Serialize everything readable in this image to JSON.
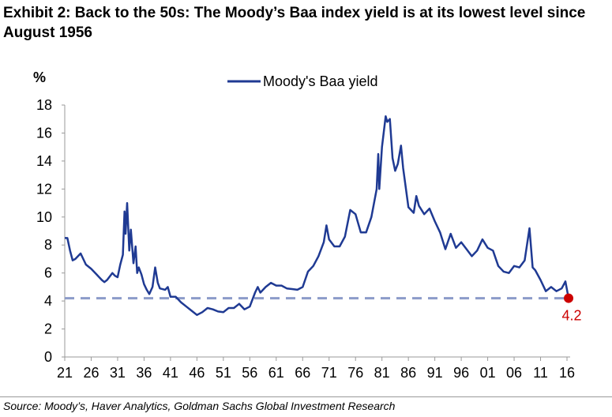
{
  "title": "Exhibit 2: Back to the 50s: The Moody’s Baa index yield is at its lowest level since August 1956",
  "source": "Source: Moody’s, Haver Analytics, Goldman Sachs Global Investment Research",
  "chart_data": {
    "type": "line",
    "ylabel": "%",
    "xlabel": "",
    "ylim": [
      0,
      18
    ],
    "xlim": [
      1921,
      2016.5
    ],
    "yticks": [
      0,
      2,
      4,
      6,
      8,
      10,
      12,
      14,
      16,
      18
    ],
    "xticks": [
      1921,
      1926,
      1931,
      1936,
      1941,
      1946,
      1951,
      1956,
      1961,
      1966,
      1971,
      1976,
      1981,
      1986,
      1991,
      1996,
      2001,
      2006,
      2011,
      2016
    ],
    "xtick_labels": [
      "21",
      "26",
      "31",
      "36",
      "41",
      "46",
      "51",
      "56",
      "61",
      "66",
      "71",
      "76",
      "81",
      "86",
      "91",
      "96",
      "01",
      "06",
      "11",
      "16"
    ],
    "legend": {
      "position": "top-center",
      "entries": [
        "Moody's Baa yield"
      ]
    },
    "colors": {
      "series": "#1f3a93",
      "reference": "#8c9bc9",
      "marker": "#cc0000"
    },
    "reference_line": {
      "value": 4.2,
      "style": "dashed"
    },
    "annotation": {
      "x": 2016.3,
      "y": 4.2,
      "label": "4.2"
    },
    "series": [
      {
        "name": "Moody's Baa yield",
        "x": [
          1921,
          1921.5,
          1922,
          1922.5,
          1923,
          1924,
          1925,
          1926,
          1927,
          1928,
          1928.5,
          1929,
          1930,
          1930.5,
          1931,
          1931.5,
          1932,
          1932.3,
          1932.5,
          1932.8,
          1933.2,
          1933.5,
          1934,
          1934.4,
          1934.7,
          1935,
          1935.5,
          1936,
          1936.5,
          1937,
          1937.6,
          1938.1,
          1938.6,
          1939,
          1940,
          1940.5,
          1941,
          1942,
          1943,
          1944,
          1945,
          1946,
          1947,
          1948,
          1949,
          1950,
          1951,
          1952,
          1953,
          1954,
          1955,
          1956,
          1957,
          1957.5,
          1958,
          1959,
          1960,
          1961,
          1962,
          1963,
          1964,
          1965,
          1966,
          1967,
          1968,
          1969,
          1970,
          1970.5,
          1971,
          1972,
          1973,
          1974,
          1975,
          1976,
          1977,
          1978,
          1979,
          1980,
          1980.3,
          1980.5,
          1981,
          1981.7,
          1982,
          1982.5,
          1983,
          1983.5,
          1984,
          1984.6,
          1985,
          1986,
          1987,
          1987.5,
          1988,
          1989,
          1990,
          1991,
          1992,
          1993,
          1994,
          1995,
          1996,
          1997,
          1998,
          1999,
          2000,
          2001,
          2002,
          2003,
          2004,
          2005,
          2006,
          2007,
          2008,
          2008.9,
          2009.5,
          2010,
          2011,
          2012,
          2013,
          2014,
          2015,
          2015.7,
          2016.3
        ],
        "values": [
          8.5,
          8.5,
          7.6,
          6.9,
          7.0,
          7.4,
          6.6,
          6.3,
          5.9,
          5.5,
          5.35,
          5.5,
          6.0,
          5.8,
          5.7,
          6.6,
          7.3,
          10.4,
          8.8,
          11.0,
          7.6,
          9.1,
          6.7,
          7.9,
          6.0,
          6.4,
          5.9,
          5.2,
          4.8,
          4.5,
          5.0,
          6.4,
          5.3,
          4.9,
          4.8,
          5.0,
          4.3,
          4.3,
          3.9,
          3.6,
          3.3,
          3.0,
          3.2,
          3.5,
          3.4,
          3.25,
          3.2,
          3.5,
          3.5,
          3.8,
          3.4,
          3.6,
          4.6,
          5.0,
          4.6,
          5.0,
          5.3,
          5.1,
          5.1,
          4.9,
          4.85,
          4.8,
          5.0,
          6.1,
          6.5,
          7.2,
          8.2,
          9.4,
          8.4,
          7.9,
          7.9,
          8.6,
          10.5,
          10.2,
          8.9,
          8.9,
          10.0,
          12.0,
          14.5,
          12.0,
          15.0,
          17.2,
          16.8,
          17.0,
          14.2,
          13.3,
          13.8,
          15.1,
          13.5,
          10.7,
          10.3,
          11.5,
          10.8,
          10.2,
          10.6,
          9.7,
          8.9,
          7.7,
          8.8,
          7.8,
          8.2,
          7.7,
          7.2,
          7.6,
          8.4,
          7.8,
          7.6,
          6.5,
          6.1,
          6.0,
          6.5,
          6.4,
          6.9,
          9.2,
          6.4,
          6.2,
          5.5,
          4.7,
          5.0,
          4.7,
          4.9,
          5.4,
          4.2
        ]
      }
    ]
  }
}
